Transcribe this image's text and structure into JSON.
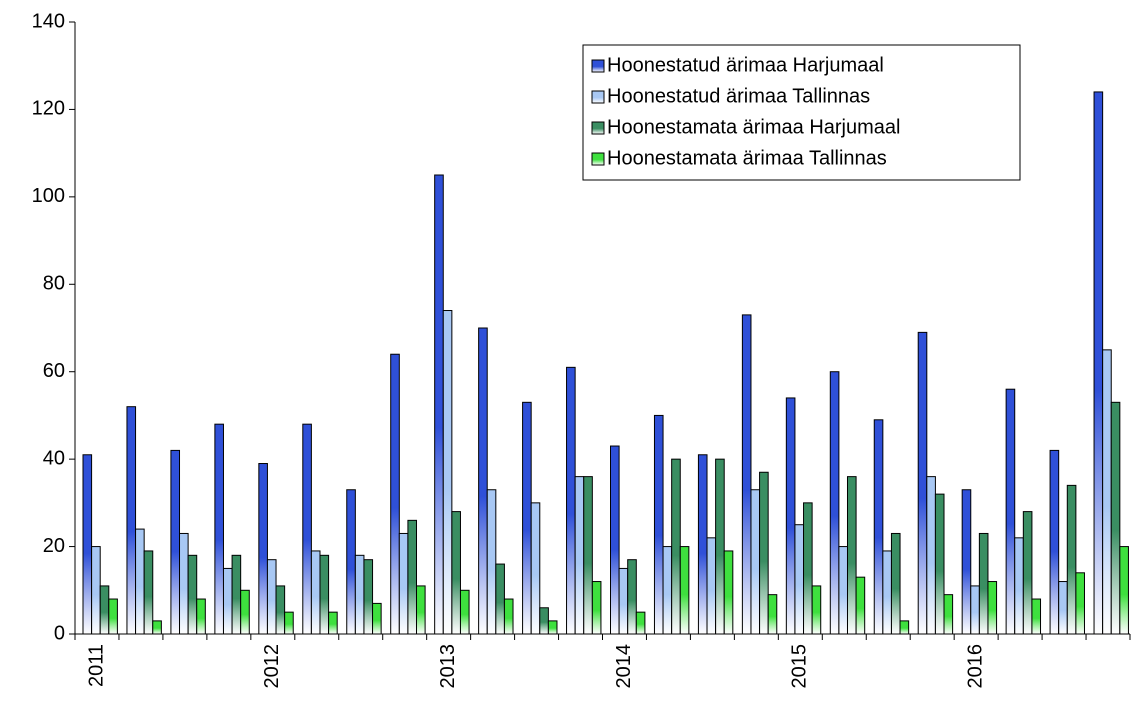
{
  "chart_data": {
    "type": "bar",
    "categories": [
      "2011",
      null,
      null,
      null,
      "2012",
      null,
      null,
      null,
      "2013",
      null,
      null,
      null,
      "2014",
      null,
      null,
      null,
      "2015",
      null,
      null,
      null,
      "2016",
      null,
      null,
      null
    ],
    "series": [
      {
        "name": "Hoonestatud ärimaa Harjumaal",
        "color": "#2f50d8",
        "values": [
          41,
          52,
          42,
          48,
          39,
          48,
          33,
          64,
          105,
          70,
          53,
          61,
          43,
          50,
          41,
          73,
          54,
          60,
          49,
          69,
          33,
          56,
          42,
          124
        ]
      },
      {
        "name": "Hoonestatud ärimaa Tallinnas",
        "color": "#a8c8f4",
        "values": [
          20,
          24,
          23,
          15,
          17,
          19,
          18,
          23,
          74,
          33,
          30,
          36,
          15,
          20,
          22,
          33,
          25,
          20,
          19,
          36,
          11,
          22,
          12,
          65
        ]
      },
      {
        "name": "Hoonestamata ärimaa Harjumaal",
        "color": "#3a8e62",
        "values": [
          11,
          19,
          18,
          18,
          11,
          18,
          17,
          26,
          28,
          16,
          6,
          36,
          17,
          40,
          40,
          37,
          30,
          36,
          23,
          32,
          23,
          28,
          34,
          53
        ]
      },
      {
        "name": "Hoonestamata ärimaa Tallinnas",
        "color": "#3ee03e",
        "values": [
          8,
          3,
          8,
          10,
          5,
          5,
          7,
          11,
          10,
          8,
          3,
          12,
          5,
          20,
          19,
          9,
          11,
          13,
          3,
          9,
          12,
          8,
          14,
          20
        ]
      }
    ],
    "ylim": [
      0,
      140
    ],
    "yticks": [
      0,
      20,
      40,
      60,
      80,
      100,
      120,
      140
    ],
    "grid": false,
    "legend": "top-right"
  }
}
